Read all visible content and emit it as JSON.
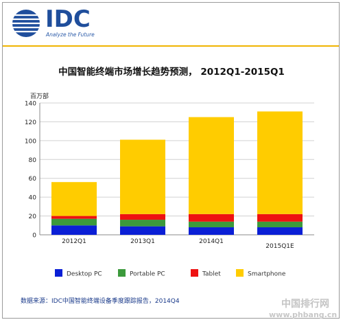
{
  "header": {
    "logo_text": "IDC",
    "logo_tagline": "Analyze the Future"
  },
  "chart_data": {
    "type": "bar",
    "stacked": true,
    "title": "中国智能终端市场增长趋势预测， 2012Q1-2015Q1",
    "ylabel": "百万部",
    "xlabel": "",
    "ylim": [
      0,
      140
    ],
    "yticks": [
      0,
      20,
      40,
      60,
      80,
      100,
      120,
      140
    ],
    "grid": true,
    "legend_position": "bottom",
    "categories": [
      "2012Q1",
      "2013Q1",
      "2014Q1",
      "2015Q1E"
    ],
    "series": [
      {
        "name": "Desktop PC",
        "color": "#0a1fd6",
        "values": [
          10,
          9,
          8,
          8
        ]
      },
      {
        "name": "Portable PC",
        "color": "#3c9a3c",
        "values": [
          7,
          7,
          6,
          6
        ]
      },
      {
        "name": "Tablet",
        "color": "#ee1111",
        "values": [
          3,
          6,
          8,
          8
        ]
      },
      {
        "name": "Smartphone",
        "color": "#ffcc00",
        "values": [
          36,
          79,
          103,
          109
        ]
      }
    ]
  },
  "source": "数据来源：IDC中国智能终端设备季度跟踪报告，2014Q4",
  "watermark": {
    "name": "中国排行网",
    "url": "www.phbang.cn"
  }
}
